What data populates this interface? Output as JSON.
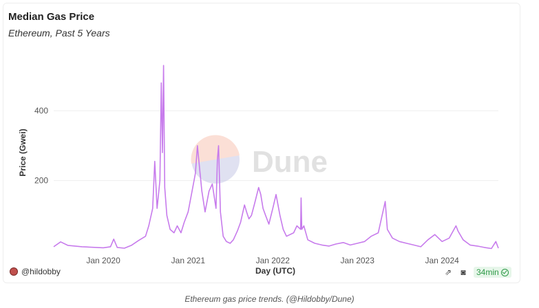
{
  "header": {
    "title": "Median Gas Price",
    "subtitle": "Ethereum, Past 5 Years"
  },
  "footer": {
    "author": "@hildobby",
    "refresh_badge": "34min"
  },
  "caption": "Ethereum gas price trends. (@Hildobby/Dune)",
  "watermark": "Dune",
  "colors": {
    "line": "#c77bec",
    "grid": "#eeeeee",
    "badge_text": "#2e9a47"
  },
  "chart_data": {
    "type": "line",
    "title": "Median Gas Price",
    "subtitle": "Ethereum, Past 5 Years",
    "xlabel": "Day (UTC)",
    "ylabel": "Price (Gwei)",
    "x_ticks": [
      "Jan 2020",
      "Jan 2021",
      "Jan 2022",
      "Jan 2023",
      "Jan 2024"
    ],
    "y_ticks": [
      200,
      400
    ],
    "ylim": [
      0,
      560
    ],
    "xlim": [
      "2019-06-01",
      "2024-08-31"
    ],
    "grid": true,
    "series": [
      {
        "name": "",
        "points": [
          [
            "2019-06-01",
            10
          ],
          [
            "2019-07-01",
            24
          ],
          [
            "2019-08-01",
            14
          ],
          [
            "2019-09-01",
            12
          ],
          [
            "2019-10-01",
            10
          ],
          [
            "2019-11-01",
            9
          ],
          [
            "2019-12-01",
            8
          ],
          [
            "2020-01-01",
            7
          ],
          [
            "2020-02-01",
            10
          ],
          [
            "2020-02-15",
            32
          ],
          [
            "2020-03-01",
            8
          ],
          [
            "2020-04-01",
            6
          ],
          [
            "2020-05-01",
            14
          ],
          [
            "2020-06-01",
            28
          ],
          [
            "2020-07-01",
            40
          ],
          [
            "2020-07-15",
            70
          ],
          [
            "2020-08-01",
            120
          ],
          [
            "2020-08-10",
            255
          ],
          [
            "2020-08-20",
            120
          ],
          [
            "2020-09-01",
            200
          ],
          [
            "2020-09-07",
            480
          ],
          [
            "2020-09-12",
            280
          ],
          [
            "2020-09-17",
            530
          ],
          [
            "2020-09-22",
            180
          ],
          [
            "2020-10-01",
            100
          ],
          [
            "2020-10-15",
            60
          ],
          [
            "2020-11-01",
            50
          ],
          [
            "2020-11-15",
            70
          ],
          [
            "2020-12-01",
            50
          ],
          [
            "2020-12-15",
            80
          ],
          [
            "2021-01-01",
            110
          ],
          [
            "2021-01-15",
            160
          ],
          [
            "2021-02-01",
            220
          ],
          [
            "2021-02-10",
            300
          ],
          [
            "2021-02-20",
            230
          ],
          [
            "2021-03-01",
            170
          ],
          [
            "2021-03-15",
            110
          ],
          [
            "2021-04-01",
            170
          ],
          [
            "2021-04-15",
            190
          ],
          [
            "2021-05-01",
            120
          ],
          [
            "2021-05-07",
            260
          ],
          [
            "2021-05-12",
            300
          ],
          [
            "2021-05-20",
            110
          ],
          [
            "2021-06-01",
            40
          ],
          [
            "2021-06-15",
            25
          ],
          [
            "2021-07-01",
            20
          ],
          [
            "2021-07-15",
            30
          ],
          [
            "2021-08-01",
            55
          ],
          [
            "2021-08-15",
            80
          ],
          [
            "2021-09-01",
            130
          ],
          [
            "2021-09-10",
            110
          ],
          [
            "2021-09-20",
            90
          ],
          [
            "2021-10-01",
            100
          ],
          [
            "2021-10-15",
            135
          ],
          [
            "2021-11-01",
            180
          ],
          [
            "2021-11-10",
            160
          ],
          [
            "2021-11-20",
            120
          ],
          [
            "2021-12-01",
            100
          ],
          [
            "2021-12-15",
            75
          ],
          [
            "2022-01-01",
            120
          ],
          [
            "2022-01-15",
            160
          ],
          [
            "2022-02-01",
            100
          ],
          [
            "2022-02-15",
            60
          ],
          [
            "2022-03-01",
            40
          ],
          [
            "2022-04-01",
            50
          ],
          [
            "2022-04-15",
            70
          ],
          [
            "2022-05-01",
            60
          ],
          [
            "2022-05-03",
            150
          ],
          [
            "2022-05-06",
            60
          ],
          [
            "2022-05-15",
            70
          ],
          [
            "2022-06-01",
            30
          ],
          [
            "2022-07-01",
            20
          ],
          [
            "2022-08-01",
            15
          ],
          [
            "2022-09-01",
            12
          ],
          [
            "2022-10-01",
            18
          ],
          [
            "2022-11-01",
            22
          ],
          [
            "2022-12-01",
            15
          ],
          [
            "2023-01-01",
            20
          ],
          [
            "2023-02-01",
            25
          ],
          [
            "2023-03-01",
            40
          ],
          [
            "2023-04-01",
            50
          ],
          [
            "2023-05-01",
            140
          ],
          [
            "2023-05-10",
            60
          ],
          [
            "2023-06-01",
            35
          ],
          [
            "2023-07-01",
            25
          ],
          [
            "2023-08-01",
            20
          ],
          [
            "2023-09-01",
            15
          ],
          [
            "2023-10-01",
            10
          ],
          [
            "2023-11-01",
            30
          ],
          [
            "2023-12-01",
            45
          ],
          [
            "2024-01-01",
            25
          ],
          [
            "2024-02-01",
            35
          ],
          [
            "2024-03-01",
            70
          ],
          [
            "2024-03-10",
            55
          ],
          [
            "2024-04-01",
            30
          ],
          [
            "2024-05-01",
            15
          ],
          [
            "2024-06-01",
            12
          ],
          [
            "2024-07-01",
            8
          ],
          [
            "2024-08-01",
            5
          ],
          [
            "2024-08-20",
            25
          ],
          [
            "2024-08-31",
            6
          ]
        ]
      }
    ]
  }
}
